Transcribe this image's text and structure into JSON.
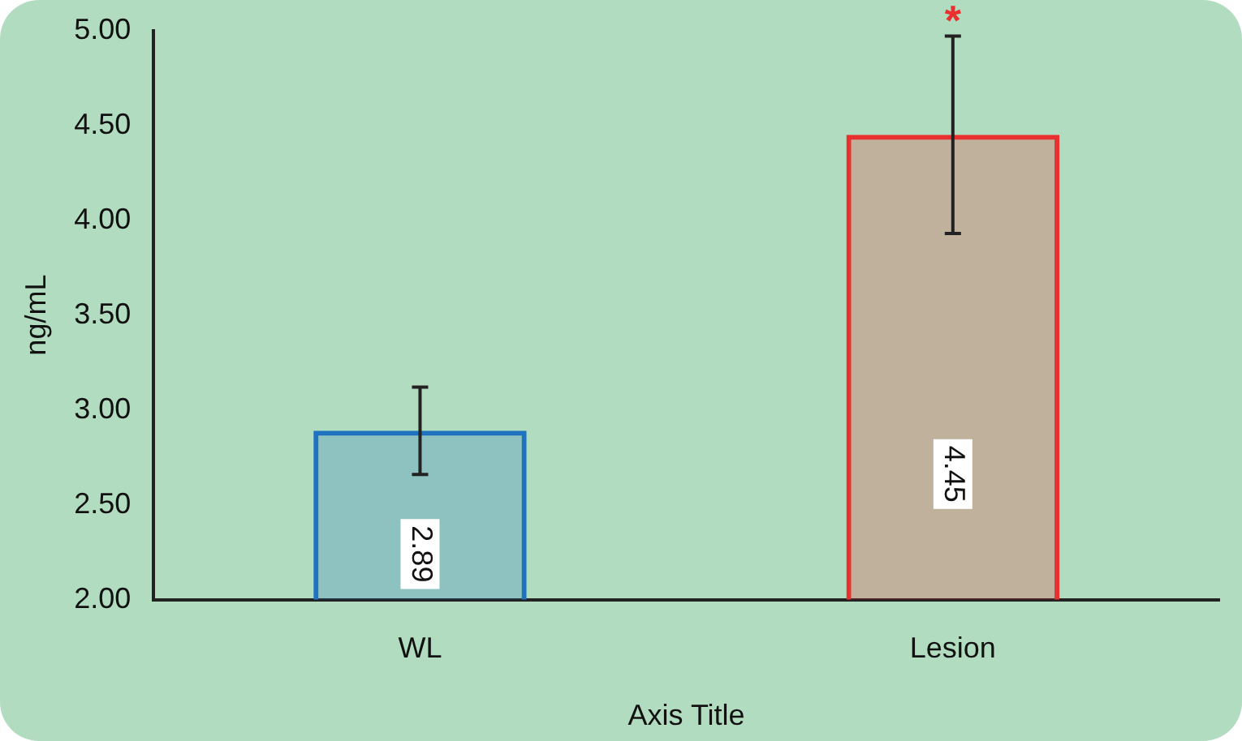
{
  "chart_data": {
    "type": "bar",
    "xlabel": "Axis Title",
    "ylabel": "ng/mL",
    "categories": [
      "WL",
      "Lesion"
    ],
    "values": [
      2.89,
      4.45
    ],
    "colors": [
      "#1f72c0",
      "#e8302e"
    ],
    "errors": [
      0.23,
      0.52
    ],
    "ylim": [
      2,
      5
    ],
    "yticks": [
      {
        "value": 2,
        "label": "2.00"
      },
      {
        "value": 2.5,
        "label": "2.50"
      },
      {
        "value": 3,
        "label": "3.00"
      },
      {
        "value": 3.5,
        "label": "3.50"
      },
      {
        "value": 4,
        "label": "4.00"
      },
      {
        "value": 4.5,
        "label": "4.50"
      },
      {
        "value": 5,
        "label": "5.00"
      }
    ],
    "data_labels": true,
    "annotations": [
      {
        "text": "*",
        "x": "Lesion",
        "y": 4.97
      }
    ],
    "grid": false,
    "legend": false
  }
}
